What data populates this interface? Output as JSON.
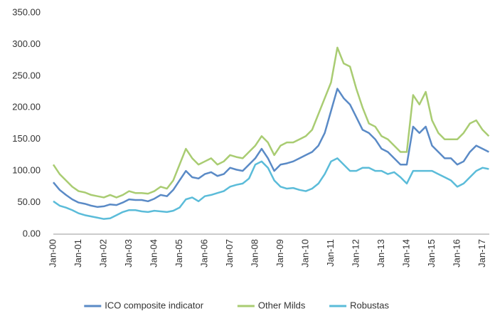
{
  "chart_data": {
    "type": "line",
    "categories": [
      "Jan-00",
      null,
      null,
      null,
      "Jan-01",
      null,
      null,
      null,
      "Jan-02",
      null,
      null,
      null,
      "Jan-03",
      null,
      null,
      null,
      "Jan-04",
      null,
      null,
      null,
      "Jan-05",
      null,
      null,
      null,
      "Jan-06",
      null,
      null,
      null,
      "Jan-07",
      null,
      null,
      null,
      "Jan-08",
      null,
      null,
      null,
      "Jan-09",
      null,
      null,
      null,
      "Jan-10",
      null,
      null,
      null,
      "Jan-11",
      null,
      null,
      null,
      "Jan-12",
      null,
      null,
      null,
      "Jan-13",
      null,
      null,
      null,
      "Jan-14",
      null,
      null,
      null,
      "Jan-15",
      null,
      null,
      null,
      "Jan-16",
      null,
      null,
      null,
      "Jan-17",
      null
    ],
    "series": [
      {
        "name": "ICO composite indicator",
        "color": "#5a8ac6",
        "values": [
          82,
          70,
          62,
          55,
          50,
          48,
          45,
          43,
          44,
          47,
          46,
          50,
          55,
          54,
          54,
          52,
          56,
          62,
          60,
          70,
          85,
          100,
          90,
          88,
          95,
          98,
          92,
          95,
          105,
          102,
          100,
          110,
          120,
          135,
          120,
          100,
          110,
          112,
          115,
          120,
          125,
          130,
          140,
          160,
          195,
          230,
          215,
          205,
          185,
          165,
          160,
          150,
          135,
          130,
          120,
          110,
          110,
          170,
          160,
          170,
          140,
          130,
          120,
          120,
          110,
          115,
          130,
          140,
          135,
          130
        ]
      },
      {
        "name": "Other Milds",
        "color": "#a9cc72",
        "values": [
          110,
          95,
          85,
          75,
          68,
          66,
          62,
          60,
          58,
          62,
          58,
          62,
          68,
          65,
          65,
          64,
          68,
          75,
          72,
          85,
          110,
          135,
          120,
          110,
          115,
          120,
          110,
          115,
          125,
          122,
          120,
          130,
          140,
          155,
          145,
          125,
          140,
          145,
          145,
          150,
          155,
          165,
          190,
          215,
          240,
          295,
          270,
          265,
          230,
          200,
          175,
          170,
          155,
          150,
          140,
          130,
          130,
          220,
          205,
          225,
          180,
          160,
          150,
          150,
          150,
          160,
          175,
          180,
          165,
          155
        ]
      },
      {
        "name": "Robustas",
        "color": "#5bbcd9",
        "values": [
          52,
          45,
          42,
          38,
          33,
          30,
          28,
          26,
          24,
          25,
          30,
          35,
          38,
          38,
          36,
          35,
          37,
          36,
          35,
          37,
          42,
          55,
          58,
          52,
          60,
          62,
          65,
          68,
          75,
          78,
          80,
          88,
          110,
          115,
          105,
          85,
          75,
          72,
          73,
          70,
          68,
          72,
          80,
          95,
          115,
          120,
          110,
          100,
          100,
          105,
          105,
          100,
          100,
          95,
          98,
          90,
          80,
          100,
          100,
          100,
          100,
          95,
          90,
          85,
          75,
          80,
          90,
          100,
          105,
          103
        ]
      }
    ],
    "ylim": [
      0,
      350
    ],
    "yticks": [
      {
        "value": 0,
        "label": "0.00"
      },
      {
        "value": 50,
        "label": "50.00"
      },
      {
        "value": 100,
        "label": "100.00"
      },
      {
        "value": 150,
        "label": "150.00"
      },
      {
        "value": 200,
        "label": "200.00"
      },
      {
        "value": 250,
        "label": "250.00"
      },
      {
        "value": 300,
        "label": "300.00"
      },
      {
        "value": 350,
        "label": "350.00"
      }
    ],
    "grid": false,
    "legend": "bottom"
  }
}
